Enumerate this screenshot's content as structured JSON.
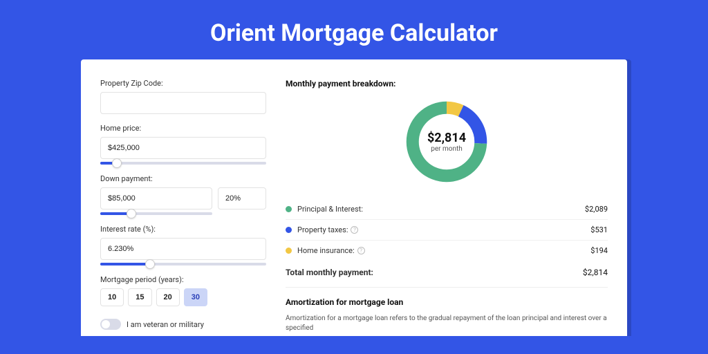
{
  "page": {
    "title": "Orient Mortgage Calculator",
    "background_color": "#3355e6"
  },
  "form": {
    "zip": {
      "label": "Property Zip Code:",
      "value": ""
    },
    "home_price": {
      "label": "Home price:",
      "value": "$425,000",
      "slider_pct": 10
    },
    "down_payment": {
      "label": "Down payment:",
      "value": "$85,000",
      "pct_value": "20%",
      "slider_pct": 28
    },
    "interest_rate": {
      "label": "Interest rate (%):",
      "value": "6.230%",
      "slider_pct": 30
    },
    "period": {
      "label": "Mortgage period (years):",
      "options": [
        "10",
        "15",
        "20",
        "30"
      ],
      "selected_index": 3
    },
    "veteran": {
      "label": "I am veteran or military",
      "value": false
    }
  },
  "breakdown": {
    "title": "Monthly payment breakdown:",
    "donut": {
      "amount": "$2,814",
      "sub": "per month",
      "slices": [
        {
          "key": "principal_interest",
          "value": 2089,
          "color": "#4fb286"
        },
        {
          "key": "property_taxes",
          "value": 531,
          "color": "#3355e6"
        },
        {
          "key": "home_insurance",
          "value": 194,
          "color": "#f2c744"
        }
      ],
      "ring_width": 18,
      "background_color": "#ffffff"
    },
    "rows": [
      {
        "label": "Principal & Interest:",
        "value": "$2,089",
        "color": "#4fb286",
        "info": false
      },
      {
        "label": "Property taxes:",
        "value": "$531",
        "color": "#3355e6",
        "info": true
      },
      {
        "label": "Home insurance:",
        "value": "$194",
        "color": "#f2c744",
        "info": true
      }
    ],
    "total": {
      "label": "Total monthly payment:",
      "value": "$2,814"
    }
  },
  "amortization": {
    "title": "Amortization for mortgage loan",
    "text": "Amortization for a mortgage loan refers to the gradual repayment of the loan principal and interest over a specified"
  }
}
